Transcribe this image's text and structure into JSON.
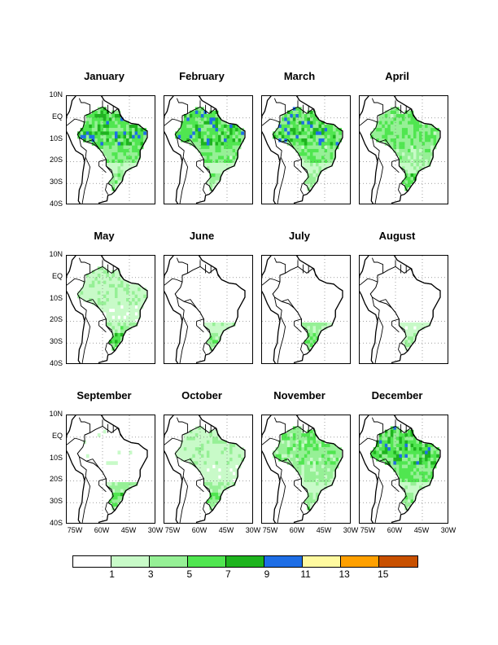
{
  "panels": [
    {
      "title": "January",
      "intensity": 0.85,
      "south": 0.55,
      "blue": 0.45
    },
    {
      "title": "February",
      "intensity": 0.85,
      "south": 0.55,
      "blue": 0.4
    },
    {
      "title": "March",
      "intensity": 0.85,
      "south": 0.55,
      "blue": 0.45
    },
    {
      "title": "April",
      "intensity": 0.65,
      "south": 0.75,
      "blue": 0.05
    },
    {
      "title": "May",
      "intensity": 0.35,
      "south": 0.85,
      "blue": 0.0
    },
    {
      "title": "June",
      "intensity": 0.12,
      "south": 0.6,
      "blue": 0.0
    },
    {
      "title": "July",
      "intensity": 0.1,
      "south": 0.7,
      "blue": 0.0
    },
    {
      "title": "August",
      "intensity": 0.06,
      "south": 0.45,
      "blue": 0.0
    },
    {
      "title": "September",
      "intensity": 0.15,
      "south": 0.8,
      "blue": 0.0
    },
    {
      "title": "October",
      "intensity": 0.35,
      "south": 0.75,
      "blue": 0.0
    },
    {
      "title": "November",
      "intensity": 0.6,
      "south": 0.55,
      "blue": 0.05
    },
    {
      "title": "December",
      "intensity": 0.85,
      "south": 0.55,
      "blue": 0.35
    }
  ],
  "lat_labels": [
    "10N",
    "EQ",
    "10S",
    "20S",
    "30S",
    "40S"
  ],
  "lon_labels": [
    "75W",
    "60W",
    "45W",
    "30W"
  ],
  "colorbar": {
    "colors": [
      "#ffffff",
      "#c8fac8",
      "#96f096",
      "#50e650",
      "#1eb41e",
      "#1e6ee6",
      "#fffaa0",
      "#ffa000",
      "#c85000"
    ],
    "labels": [
      "1",
      "3",
      "5",
      "7",
      "9",
      "11",
      "13",
      "15"
    ]
  }
}
